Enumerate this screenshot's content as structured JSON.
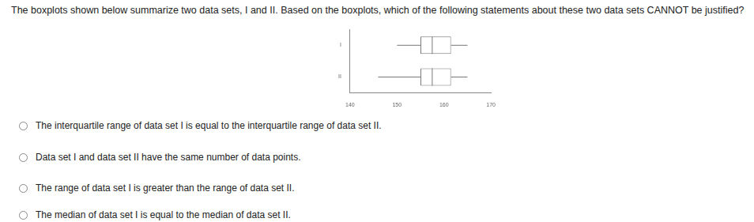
{
  "question": "The boxplots shown below summarize two data sets, I and II. Based on the boxplots, which of the following statements about these two data sets CANNOT be justified?",
  "chart_data": {
    "type": "boxplot",
    "orientation": "horizontal",
    "categories": [
      "I",
      "II"
    ],
    "min": [
      150,
      146
    ],
    "q1": [
      155,
      155
    ],
    "median": [
      157.5,
      157.5
    ],
    "q3": [
      161.5,
      161.5
    ],
    "max": [
      165,
      165
    ],
    "xlim": [
      140,
      170
    ],
    "xticks": [
      140,
      150,
      160,
      170
    ],
    "grid": false
  },
  "options": [
    "The interquartile range of data set I is equal to the interquartile range of data set II.",
    "Data set I and data set II have the same number of data points.",
    "The range of data set I is greater than the range of data set II.",
    "The median of data set I is equal to the median of data set II."
  ]
}
